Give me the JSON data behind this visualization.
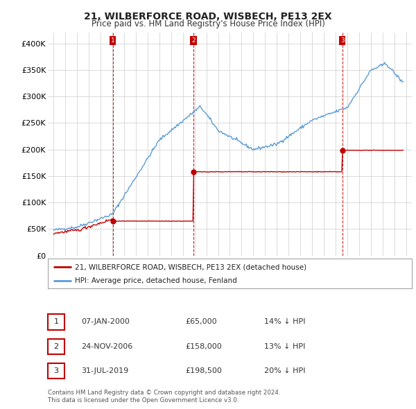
{
  "title": "21, WILBERFORCE ROAD, WISBECH, PE13 2EX",
  "subtitle": "Price paid vs. HM Land Registry's House Price Index (HPI)",
  "legend_line1": "21, WILBERFORCE ROAD, WISBECH, PE13 2EX (detached house)",
  "legend_line2": "HPI: Average price, detached house, Fenland",
  "footer1": "Contains HM Land Registry data © Crown copyright and database right 2024.",
  "footer2": "This data is licensed under the Open Government Licence v3.0.",
  "transactions": [
    {
      "num": 1,
      "date": "07-JAN-2000",
      "price": "£65,000",
      "hpi": "14% ↓ HPI"
    },
    {
      "num": 2,
      "date": "24-NOV-2006",
      "price": "£158,000",
      "hpi": "13% ↓ HPI"
    },
    {
      "num": 3,
      "date": "31-JUL-2019",
      "price": "£198,500",
      "hpi": "20% ↓ HPI"
    }
  ],
  "sale_dates": [
    2000.03,
    2006.9,
    2019.58
  ],
  "sale_prices": [
    65000,
    158000,
    198500
  ],
  "hpi_color": "#5b9bd5",
  "sold_color": "#c00000",
  "vline_color": "#c00000",
  "grid_color": "#cccccc",
  "bg_color": "#ffffff",
  "ylim": [
    0,
    420000
  ],
  "xlim_start": 1994.5,
  "xlim_end": 2025.5,
  "yticks": [
    0,
    50000,
    100000,
    150000,
    200000,
    250000,
    300000,
    350000,
    400000
  ],
  "ytick_labels": [
    "£0",
    "£50K",
    "£100K",
    "£150K",
    "£200K",
    "£250K",
    "£300K",
    "£350K",
    "£400K"
  ],
  "xticks": [
    1995,
    1996,
    1997,
    1998,
    1999,
    2000,
    2001,
    2002,
    2003,
    2004,
    2005,
    2006,
    2007,
    2008,
    2009,
    2010,
    2011,
    2012,
    2013,
    2014,
    2015,
    2016,
    2017,
    2018,
    2019,
    2020,
    2021,
    2022,
    2023,
    2024,
    2025
  ]
}
